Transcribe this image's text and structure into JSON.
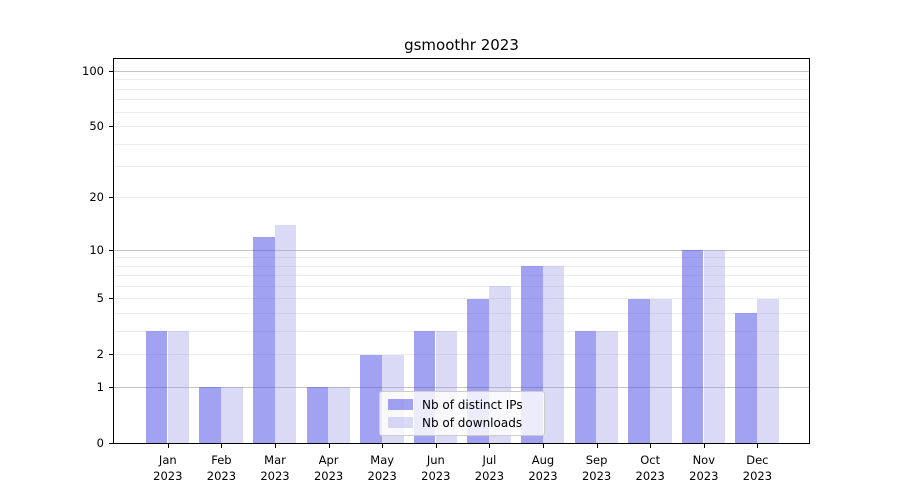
{
  "chart_data": {
    "type": "bar",
    "title": "gsmoothr 2023",
    "categories": [
      {
        "month": "Jan",
        "year": "2023"
      },
      {
        "month": "Feb",
        "year": "2023"
      },
      {
        "month": "Mar",
        "year": "2023"
      },
      {
        "month": "Apr",
        "year": "2023"
      },
      {
        "month": "May",
        "year": "2023"
      },
      {
        "month": "Jun",
        "year": "2023"
      },
      {
        "month": "Jul",
        "year": "2023"
      },
      {
        "month": "Aug",
        "year": "2023"
      },
      {
        "month": "Sep",
        "year": "2023"
      },
      {
        "month": "Oct",
        "year": "2023"
      },
      {
        "month": "Nov",
        "year": "2023"
      },
      {
        "month": "Dec",
        "year": "2023"
      }
    ],
    "series": [
      {
        "name": "Nb of distinct IPs",
        "color_hex": "#a8a8f2",
        "fill": "rgba(70,70,230,0.5)",
        "values": [
          3,
          1,
          12,
          1,
          2,
          3,
          5,
          8,
          3,
          5,
          10,
          4
        ]
      },
      {
        "name": "Nb of downloads",
        "color_hex": "#d9d9f7",
        "fill": "rgba(150,150,230,0.35)",
        "values": [
          3,
          1,
          14,
          1,
          2,
          3,
          6,
          8,
          3,
          5,
          10,
          5
        ]
      }
    ],
    "y_axis": {
      "scale": "log1p",
      "tick_values": [
        0,
        1,
        2,
        5,
        10,
        20,
        50,
        100
      ],
      "major_gridlines": [
        1,
        10,
        100
      ],
      "minor_gridlines": [
        2,
        3,
        4,
        5,
        6,
        7,
        8,
        9,
        20,
        30,
        40,
        50,
        60,
        70,
        80,
        90
      ],
      "top_value_approx": 115
    },
    "legend": {
      "position": "lower center",
      "items": [
        "Nb of distinct IPs",
        "Nb of downloads"
      ]
    },
    "colors": {
      "major_grid": "#c4c4c4",
      "minor_grid": "#ececec",
      "spine": "#000000",
      "legend_bg": "rgba(255,255,255,0.8)",
      "legend_border": "#cccccc",
      "title_color": "#000000"
    }
  }
}
